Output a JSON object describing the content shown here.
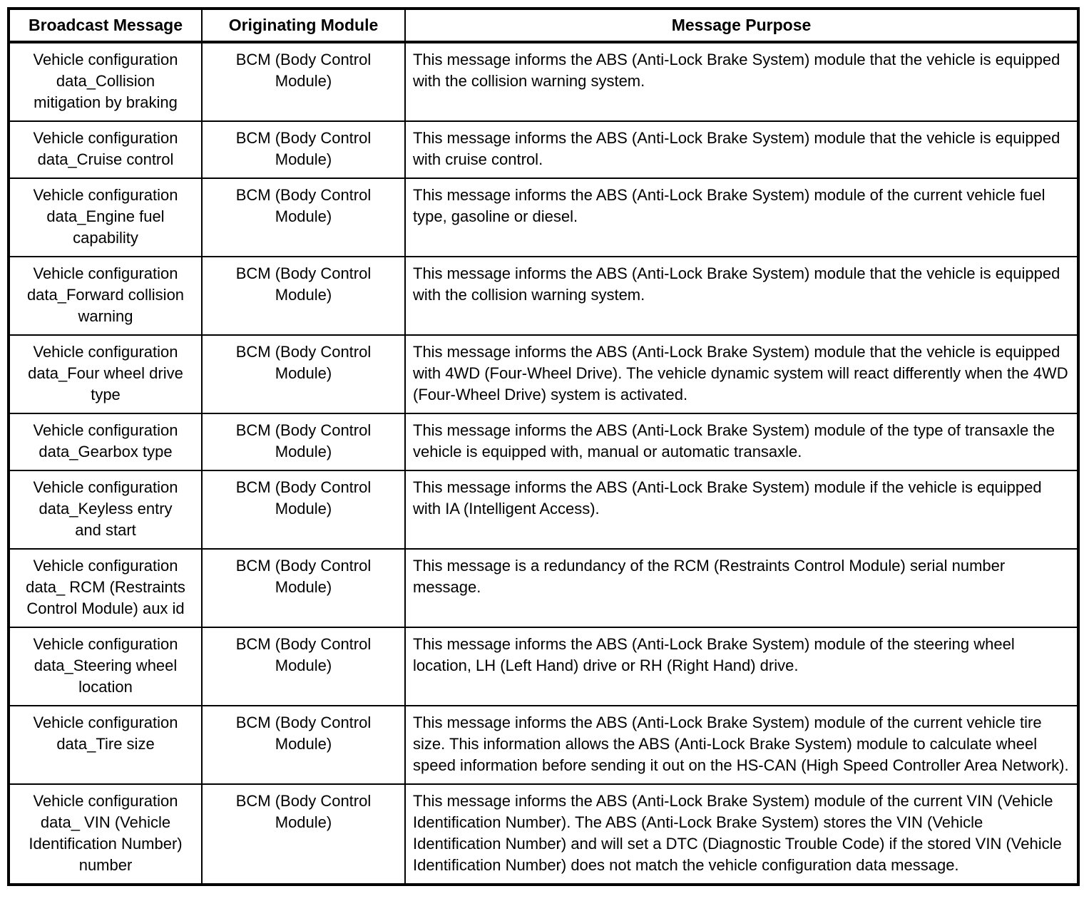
{
  "table": {
    "headers": {
      "broadcast_message": "Broadcast Message",
      "originating_module": "Originating Module",
      "message_purpose": "Message Purpose"
    },
    "rows": [
      {
        "message": "Vehicle configuration\ndata_Collision\nmitigation by braking",
        "module": "BCM (Body Control\nModule)",
        "purpose": "This message informs the ABS (Anti-Lock Brake System) module that the vehicle is equipped with the collision warning system."
      },
      {
        "message": "Vehicle configuration\ndata_Cruise control",
        "module": "BCM (Body Control\nModule)",
        "purpose": "This message informs the ABS (Anti-Lock Brake System) module that the vehicle is equipped with cruise control."
      },
      {
        "message": "Vehicle configuration\ndata_Engine fuel\ncapability",
        "module": "BCM (Body Control\nModule)",
        "purpose": "This message informs the ABS (Anti-Lock Brake System) module of the current vehicle fuel type, gasoline or diesel."
      },
      {
        "message": "Vehicle configuration\ndata_Forward collision\nwarning",
        "module": "BCM (Body Control\nModule)",
        "purpose": "This message informs the ABS (Anti-Lock Brake System) module that the vehicle is equipped with the collision warning system."
      },
      {
        "message": "Vehicle configuration\ndata_Four wheel drive\ntype",
        "module": "BCM (Body Control\nModule)",
        "purpose": "This message informs the ABS (Anti-Lock Brake System) module that the vehicle is equipped with 4WD (Four-Wheel Drive). The vehicle dynamic system will react differently when the 4WD (Four-Wheel Drive) system is activated."
      },
      {
        "message": "Vehicle configuration\ndata_Gearbox type",
        "module": "BCM (Body Control\nModule)",
        "purpose": "This message informs the ABS (Anti-Lock Brake System) module of the type of transaxle the vehicle is equipped with, manual or automatic transaxle."
      },
      {
        "message": "Vehicle configuration\ndata_Keyless entry\nand start",
        "module": "BCM (Body Control\nModule)",
        "purpose": "This message informs the ABS (Anti-Lock Brake System) module if the vehicle is equipped with IA (Intelligent Access)."
      },
      {
        "message": "Vehicle configuration\ndata_ RCM (Restraints\nControl Module) aux id",
        "module": "BCM (Body Control\nModule)",
        "purpose": "This message is a redundancy of the RCM (Restraints Control Module) serial number message."
      },
      {
        "message": "Vehicle configuration\ndata_Steering wheel\nlocation",
        "module": "BCM (Body Control\nModule)",
        "purpose": "This message informs the ABS (Anti-Lock Brake System) module of the steering wheel location, LH (Left Hand) drive or RH (Right Hand) drive."
      },
      {
        "message": "Vehicle configuration\ndata_Tire size",
        "module": "BCM (Body Control\nModule)",
        "purpose": "This message informs the ABS (Anti-Lock Brake System) module of the current vehicle tire size. This information allows the ABS (Anti-Lock Brake System) module to calculate wheel speed information before sending it out on the HS-CAN (High Speed Controller Area Network)."
      },
      {
        "message": "Vehicle configuration\ndata_ VIN (Vehicle\nIdentification Number)\nnumber",
        "module": "BCM (Body Control\nModule)",
        "purpose": "This message informs the ABS (Anti-Lock Brake System) module of the current VIN (Vehicle Identification Number). The ABS (Anti-Lock Brake System) stores the VIN (Vehicle Identification Number) and will set a DTC (Diagnostic Trouble Code) if the stored VIN (Vehicle Identification Number) does not match the vehicle configuration data message."
      }
    ]
  }
}
